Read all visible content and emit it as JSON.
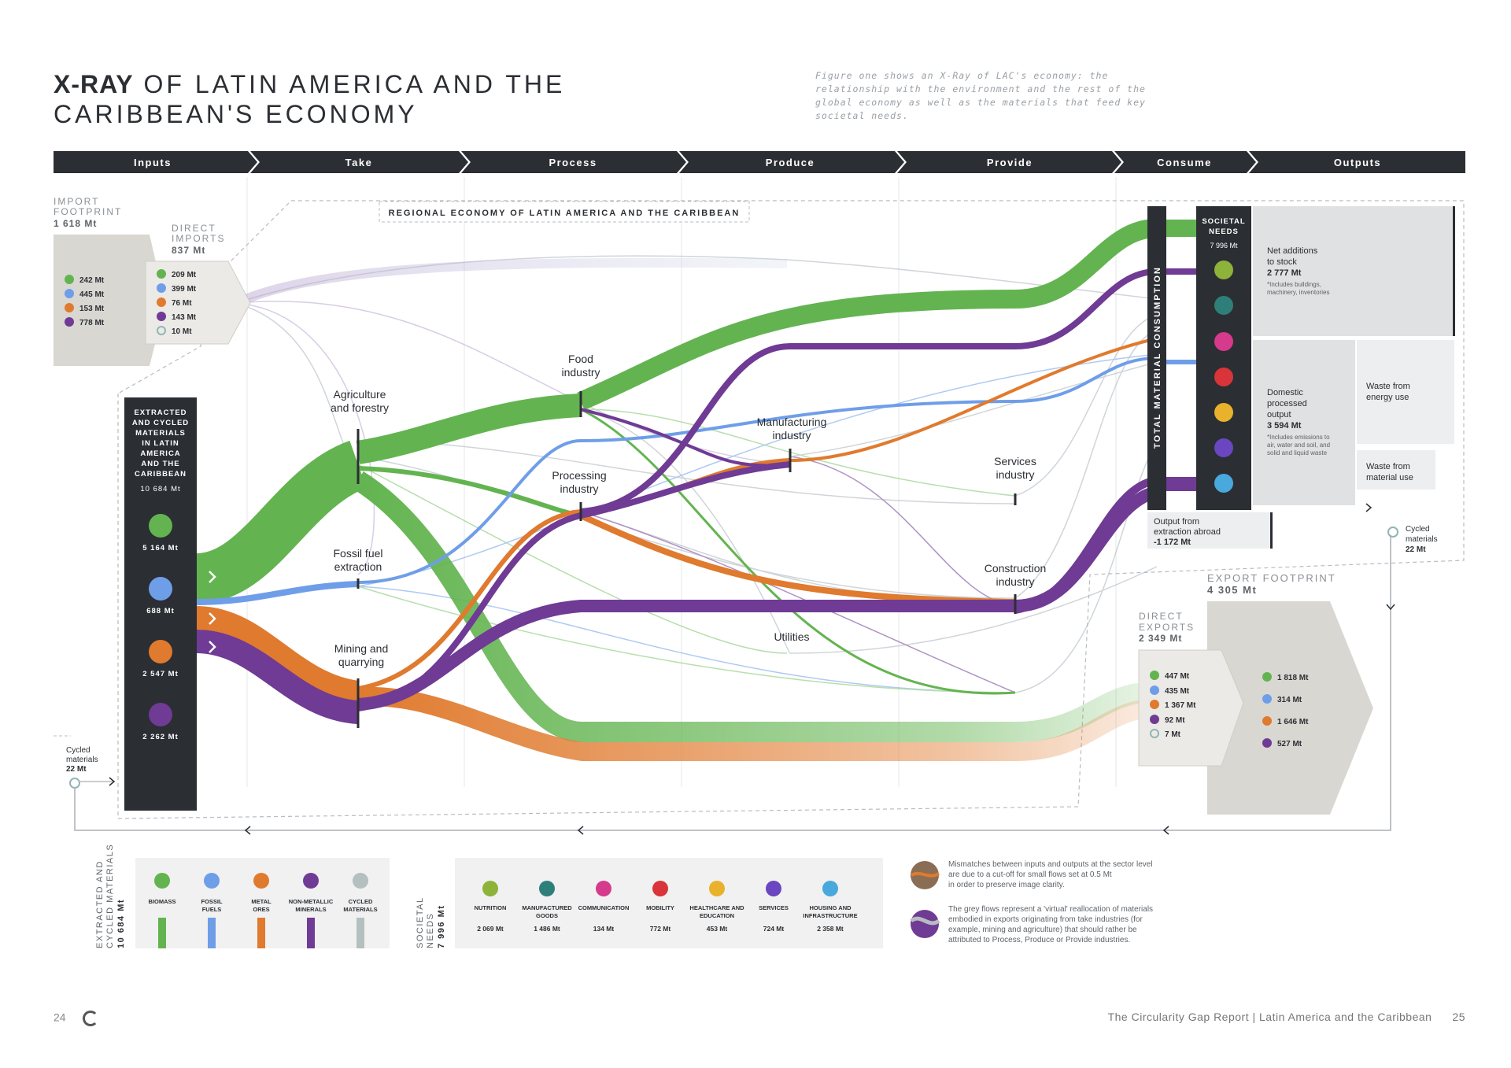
{
  "title": {
    "bold": "X-RAY",
    "rest_line1": " OF LATIN AMERICA AND THE",
    "line2": "CARIBBEAN'S ECONOMY"
  },
  "intro": "Figure one shows an X-Ray of LAC's economy: the relationship with the environment and the rest of the global economy as well as the materials that feed key societal needs.",
  "stages": [
    "Inputs",
    "Take",
    "Process",
    "Produce",
    "Provide",
    "Consume",
    "Outputs"
  ],
  "region_label": "REGIONAL ECONOMY OF LATIN AMERICA AND THE CARIBBEAN",
  "import_footprint": {
    "label1": "IMPORT",
    "label2": "FOOTPRINT",
    "value": "1 618 Mt",
    "items": [
      "242 Mt",
      "445 Mt",
      "153 Mt",
      "778 Mt"
    ]
  },
  "direct_imports": {
    "label1": "DIRECT",
    "label2": "IMPORTS",
    "value": "837 Mt",
    "items": [
      "209 Mt",
      "399 Mt",
      "76 Mt",
      "143 Mt",
      "10 Mt"
    ]
  },
  "extracted": {
    "lines": [
      "EXTRACTED",
      "AND CYCLED",
      "MATERIALS",
      "IN LATIN",
      "AMERICA",
      "AND THE",
      "CARIBBEAN"
    ],
    "total": "10 684 Mt",
    "items": [
      "5 164 Mt",
      "688 Mt",
      "2 547 Mt",
      "2 262 Mt"
    ]
  },
  "sectors": {
    "agriculture": [
      "Agriculture",
      "and forestry"
    ],
    "fossil": [
      "Fossil fuel",
      "extraction"
    ],
    "mining": [
      "Mining and",
      "quarrying"
    ],
    "food": [
      "Food",
      "industry"
    ],
    "processing": [
      "Processing",
      "industry"
    ],
    "manufacturing": [
      "Manufacturing",
      "industry"
    ],
    "utilities": [
      "Utilities"
    ],
    "services": [
      "Services",
      "industry"
    ],
    "construction": [
      "Construction",
      "industry"
    ]
  },
  "total_consumption": "TOTAL MATERIAL CONSUMPTION",
  "societal_needs": {
    "label1": "SOCIETAL",
    "label2": "NEEDS",
    "value": "7 996 Mt"
  },
  "outputs": {
    "net_additions": {
      "l1": "Net additions",
      "l2": "to stock",
      "value": "2 777 Mt",
      "n1": "*Includes buildings,",
      "n2": "machinery, inventories"
    },
    "dpo": {
      "l1": "Domestic",
      "l2": "processed",
      "l3": "output",
      "value": "3 594 Mt",
      "n1": "*Includes emissions to",
      "n2": "air, water and soil, and",
      "n3": "solid and liquid waste"
    },
    "waste_energy": [
      "Waste from",
      "energy use"
    ],
    "waste_material": [
      "Waste from",
      "material use"
    ],
    "extraction_abroad": {
      "l1": "Output from",
      "l2": "extraction abroad",
      "value": "-1 172 Mt"
    },
    "cycled_right": {
      "l1": "Cycled",
      "l2": "materials",
      "value": "22 Mt"
    }
  },
  "cycled_left": {
    "l1": "Cycled",
    "l2": "materials",
    "value": "22 Mt"
  },
  "export_footprint": {
    "label": "EXPORT FOOTPRINT",
    "value": "4 305 Mt",
    "items": [
      "1 818 Mt",
      "314 Mt",
      "1 646 Mt",
      "527 Mt"
    ]
  },
  "direct_exports": {
    "label1": "DIRECT",
    "label2": "EXPORTS",
    "value": "2 349 Mt",
    "items": [
      "447 Mt",
      "435 Mt",
      "1 367 Mt",
      "92 Mt",
      "7 Mt"
    ]
  },
  "legend_materials": {
    "side1": "EXTRACTED AND",
    "side2": "CYCLED MATERIALS",
    "side3": "10 684 Mt",
    "items": [
      {
        "l1": "BIOMASS",
        "l2": "",
        "color": "#63b450"
      },
      {
        "l1": "FOSSIL",
        "l2": "FUELS",
        "color": "#6f9ee8"
      },
      {
        "l1": "METAL",
        "l2": "ORES",
        "color": "#e07a2e"
      },
      {
        "l1": "NON-METALLIC",
        "l2": "MINERALS",
        "color": "#6f3b94"
      },
      {
        "l1": "CYCLED",
        "l2": "MATERIALS",
        "color": "#b4bfbf"
      }
    ]
  },
  "legend_needs": {
    "side1": "SOCIETAL",
    "side2": "NEEDS",
    "side3": "7 996 Mt",
    "items": [
      {
        "l1": "NUTRITION",
        "l2": "",
        "value": "2 069 Mt",
        "color": "#8db33a"
      },
      {
        "l1": "MANUFACTURED",
        "l2": "GOODS",
        "value": "1 486 Mt",
        "color": "#2e7f7a"
      },
      {
        "l1": "COMMUNICATION",
        "l2": "",
        "value": "134 Mt",
        "color": "#d63a8c"
      },
      {
        "l1": "MOBILITY",
        "l2": "",
        "value": "772 Mt",
        "color": "#d8343a"
      },
      {
        "l1": "HEALTHCARE AND",
        "l2": "EDUCATION",
        "value": "453 Mt",
        "color": "#e9b22c"
      },
      {
        "l1": "SERVICES",
        "l2": "",
        "value": "724 Mt",
        "color": "#6a46c0"
      },
      {
        "l1": "HOUSING AND",
        "l2": "INFRASTRUCTURE",
        "value": "2 358 Mt",
        "color": "#49a8dc"
      }
    ]
  },
  "notes": {
    "note1": [
      "Mismatches between inputs and outputs at the sector level",
      "are due to a cut-off for small flows set at 0.5 Mt",
      "in order to preserve image clarity."
    ],
    "note2": [
      "The grey flows represent a 'virtual' reallocation of materials",
      "embodied in exports originating from take industries (for",
      "example, mining and agriculture) that should rather be",
      "attributed to Process, Produce or Provide industries."
    ]
  },
  "footer": {
    "page_left": "24",
    "report": "The Circularity Gap Report | Latin America and the Caribbean",
    "page_right": "25"
  },
  "colors": {
    "biomass": "#63b450",
    "fossil": "#6f9ee8",
    "metal": "#e07a2e",
    "minerals": "#6f3b94",
    "dark": "#2b2e33",
    "grey_box": "#dfe1e2"
  }
}
